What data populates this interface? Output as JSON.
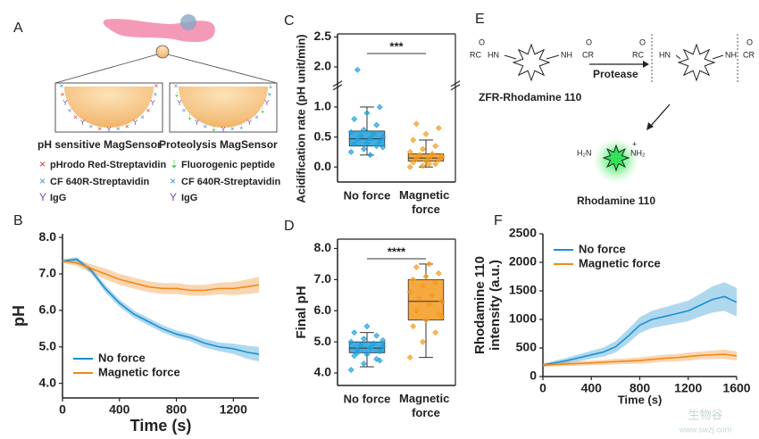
{
  "panel_a": {
    "label": "A",
    "sensor_titles": [
      "pH sensitive MagSensor",
      "Proteolysis MagSensor"
    ],
    "legend_left": [
      "pHrodo Red-Streptavidin",
      "CF 640R-Streptavidin",
      "IgG"
    ],
    "legend_right": [
      "Fluorogenic peptide",
      "CF 640R-Streptavidin",
      "IgG"
    ]
  },
  "panel_e": {
    "label": "E",
    "substrate": "ZFR-Rhodamine 110",
    "enzyme": "Protease",
    "product": "Rhodamine 110",
    "groups": [
      "O",
      "RC",
      "HN",
      "NH",
      "C",
      "CR",
      "H₂N",
      "NH₂",
      "+"
    ]
  },
  "chart_data": [
    {
      "type": "line",
      "label": "B",
      "xlabel": "Time (s)",
      "ylabel": "pH",
      "x": [
        0,
        100,
        200,
        300,
        400,
        500,
        600,
        700,
        800,
        900,
        1000,
        1100,
        1200,
        1300,
        1380
      ],
      "xlim": [
        0,
        1380
      ],
      "xticks": [
        0,
        400,
        800,
        1200
      ],
      "ylim": [
        3.6,
        8.1
      ],
      "yticks": [
        {
          "value": 4,
          "label": "4.0"
        },
        {
          "value": 5,
          "label": "5.0"
        },
        {
          "value": 6,
          "label": "6.0"
        },
        {
          "value": 7,
          "label": "7.0"
        },
        {
          "value": 8,
          "label": "8.0"
        }
      ],
      "legend": "lower left",
      "series": [
        {
          "name": "No force",
          "color": "#1b8fd2",
          "values": [
            7.35,
            7.4,
            7.1,
            6.6,
            6.2,
            5.9,
            5.7,
            5.5,
            5.35,
            5.25,
            5.1,
            5.0,
            4.95,
            4.85,
            4.8
          ],
          "errors": [
            0.05,
            0.06,
            0.08,
            0.1,
            0.1,
            0.1,
            0.1,
            0.1,
            0.1,
            0.1,
            0.12,
            0.12,
            0.14,
            0.18,
            0.2
          ]
        },
        {
          "name": "Magnetic force",
          "color": "#f0891d",
          "values": [
            7.35,
            7.3,
            7.15,
            7.0,
            6.85,
            6.75,
            6.65,
            6.6,
            6.6,
            6.55,
            6.55,
            6.6,
            6.6,
            6.65,
            6.7
          ],
          "errors": [
            0.05,
            0.08,
            0.12,
            0.15,
            0.15,
            0.15,
            0.15,
            0.15,
            0.15,
            0.15,
            0.15,
            0.16,
            0.18,
            0.2,
            0.22
          ]
        }
      ]
    },
    {
      "type": "box",
      "label": "C",
      "ylabel": "Acidification rate (pH unit/min)",
      "categories": [
        "No force",
        "Magnetic force"
      ],
      "ylim": [
        -0.25,
        2.55
      ],
      "ybreak": [
        1.3,
        1.75
      ],
      "yticks": [
        {
          "value": 0,
          "label": "0.0"
        },
        {
          "value": 0.5,
          "label": "0.5"
        },
        {
          "value": 1,
          "label": "1.0"
        },
        {
          "value": 2,
          "label": "2.0"
        },
        {
          "value": 2.5,
          "label": "2.5"
        }
      ],
      "significance": "***",
      "boxes": [
        {
          "color": "#1f9fdc",
          "min": 0.2,
          "q1": 0.35,
          "median": 0.47,
          "q3": 0.6,
          "max": 1.0,
          "points": [
            0.25,
            0.3,
            0.35,
            0.38,
            0.4,
            0.42,
            0.45,
            0.48,
            0.5,
            0.52,
            0.55,
            0.58,
            0.62,
            0.7,
            0.8,
            0.9,
            1.0,
            1.95,
            0.2,
            0.33
          ]
        },
        {
          "color": "#f39a1e",
          "min": 0.0,
          "q1": 0.1,
          "median": 0.15,
          "q3": 0.22,
          "max": 0.45,
          "points": [
            0.0,
            0.02,
            0.05,
            0.08,
            0.1,
            0.12,
            0.14,
            0.15,
            0.17,
            0.2,
            0.22,
            0.25,
            0.3,
            0.35,
            0.45,
            0.55,
            0.65,
            0.72,
            0.05,
            0.18
          ]
        }
      ]
    },
    {
      "type": "box",
      "label": "D",
      "ylabel": "Final pH",
      "categories": [
        "No force",
        "Magnetic force"
      ],
      "ylim": [
        3.6,
        8.3
      ],
      "yticks": [
        {
          "value": 4,
          "label": "4.0"
        },
        {
          "value": 5,
          "label": "5.0"
        },
        {
          "value": 6,
          "label": "6.0"
        },
        {
          "value": 7,
          "label": "7.0"
        },
        {
          "value": 8,
          "label": "8.0"
        }
      ],
      "significance": "****",
      "boxes": [
        {
          "color": "#1f9fdc",
          "min": 4.2,
          "q1": 4.65,
          "median": 4.8,
          "q3": 5.0,
          "max": 5.3,
          "points": [
            4.1,
            4.3,
            4.45,
            4.55,
            4.6,
            4.7,
            4.75,
            4.8,
            4.85,
            4.9,
            4.95,
            5.0,
            5.1,
            5.2,
            5.3,
            5.5,
            4.4,
            4.65,
            4.8,
            5.05
          ]
        },
        {
          "color": "#f39a1e",
          "min": 4.5,
          "q1": 5.7,
          "median": 6.3,
          "q3": 7.0,
          "max": 7.5,
          "points": [
            4.5,
            5.0,
            5.3,
            5.5,
            5.7,
            5.9,
            6.0,
            6.2,
            6.3,
            6.4,
            6.5,
            6.6,
            6.8,
            6.9,
            7.0,
            7.1,
            7.2,
            7.4,
            7.5,
            5.8
          ]
        }
      ]
    },
    {
      "type": "line",
      "label": "F",
      "xlabel": "Time (s)",
      "ylabel": [
        "Rhodamine 110",
        "intensity (a.u.)"
      ],
      "x": [
        0,
        100,
        200,
        300,
        400,
        500,
        600,
        700,
        800,
        900,
        1000,
        1100,
        1200,
        1300,
        1400,
        1500,
        1600
      ],
      "xlim": [
        0,
        1600
      ],
      "xticks": [
        0,
        400,
        800,
        1200,
        1600
      ],
      "ylim": [
        0,
        2500
      ],
      "yticks": [
        0,
        500,
        1000,
        1500,
        2000,
        2500
      ],
      "legend": "upper left",
      "series": [
        {
          "name": "No force",
          "color": "#1b8fd2",
          "values": [
            200,
            240,
            280,
            330,
            380,
            430,
            520,
            700,
            900,
            1000,
            1050,
            1100,
            1150,
            1250,
            1350,
            1400,
            1300
          ],
          "errors": [
            30,
            40,
            50,
            60,
            70,
            80,
            100,
            120,
            140,
            150,
            160,
            170,
            180,
            200,
            230,
            250,
            250
          ]
        },
        {
          "name": "Magnetic force",
          "color": "#f0891d",
          "values": [
            200,
            210,
            220,
            230,
            240,
            250,
            260,
            270,
            280,
            300,
            320,
            330,
            350,
            370,
            380,
            390,
            360
          ],
          "errors": [
            30,
            30,
            35,
            40,
            40,
            45,
            50,
            50,
            55,
            60,
            60,
            65,
            70,
            70,
            75,
            80,
            80
          ]
        }
      ]
    }
  ],
  "watermark": [
    "生物谷",
    "www.swzj.com"
  ]
}
